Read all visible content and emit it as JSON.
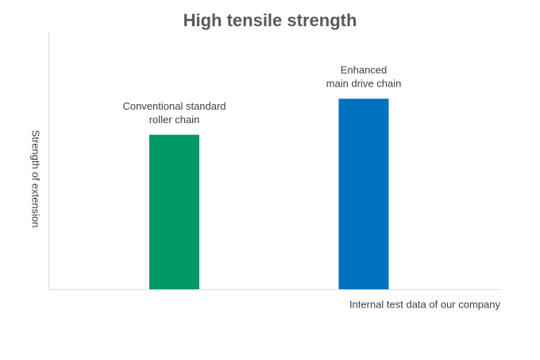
{
  "chart_data": {
    "type": "bar",
    "title": "High tensile strength",
    "y_label": "Strength of extension",
    "note": "Internal test data of our company",
    "categories": [
      [
        "Conventional standard",
        "roller chain"
      ],
      [
        "Enhanced",
        "main drive chain"
      ]
    ],
    "values": [
      60,
      74
    ],
    "colors": [
      "#009966",
      "#0070c0"
    ],
    "ylim": [
      0,
      100
    ]
  }
}
